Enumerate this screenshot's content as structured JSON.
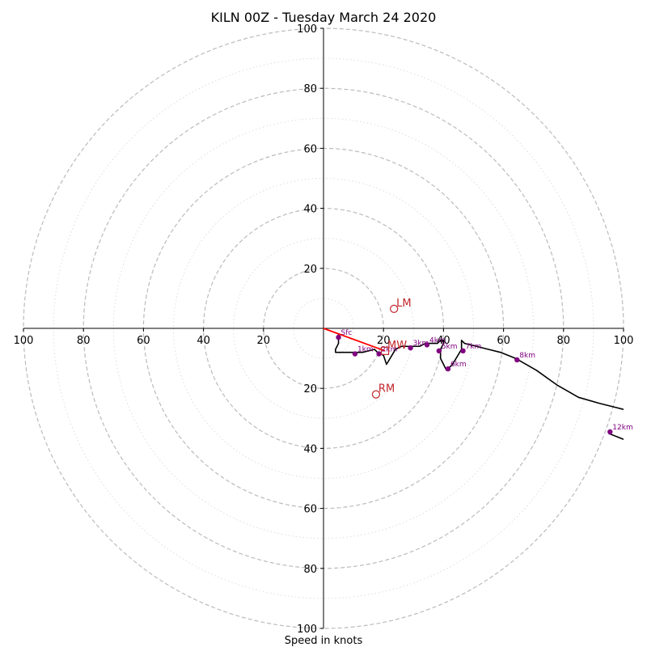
{
  "chart_data": {
    "type": "hodograph",
    "title": "KILN 00Z - Tuesday March 24 2020",
    "xlabel": "Speed in knots",
    "ylabel": "",
    "range": [
      -100,
      100
    ],
    "tick_labels": [
      "100",
      "80",
      "60",
      "40",
      "20",
      "20",
      "40",
      "60",
      "80",
      "100"
    ],
    "tick_values_x": [
      -100,
      -80,
      -60,
      -40,
      -20,
      20,
      40,
      60,
      80,
      100
    ],
    "tick_labels_y": [
      "100",
      "80",
      "60",
      "40",
      "20",
      "20",
      "40",
      "60",
      "80",
      "100"
    ],
    "tick_values_y": [
      100,
      80,
      60,
      40,
      20,
      -20,
      -40,
      -60,
      -80,
      -100
    ],
    "rings_major": [
      20,
      40,
      60,
      80,
      100
    ],
    "rings_minor": [
      10,
      30,
      50,
      70,
      90
    ],
    "grid": true,
    "hodograph_line": [
      [
        5,
        -2
      ],
      [
        5,
        -5
      ],
      [
        4,
        -7
      ],
      [
        4,
        -8
      ],
      [
        10,
        -8
      ],
      [
        13,
        -8
      ],
      [
        17,
        -7
      ],
      [
        18,
        -8
      ],
      [
        20,
        -9
      ],
      [
        21,
        -12
      ],
      [
        24,
        -7
      ],
      [
        26,
        -6
      ],
      [
        29,
        -6
      ],
      [
        32,
        -6
      ],
      [
        34,
        -5
      ],
      [
        36,
        -5
      ],
      [
        38,
        -5
      ],
      [
        39,
        -4
      ],
      [
        40,
        -4
      ],
      [
        40,
        -5
      ],
      [
        39,
        -7
      ],
      [
        39,
        -9
      ],
      [
        39,
        -10
      ],
      [
        40,
        -12
      ],
      [
        41,
        -14
      ],
      [
        43,
        -12
      ],
      [
        46,
        -7
      ],
      [
        46,
        -4
      ],
      [
        47,
        -5
      ],
      [
        51,
        -6
      ],
      [
        55,
        -7
      ],
      [
        59,
        -8
      ],
      [
        64,
        -10
      ],
      [
        71,
        -14
      ],
      [
        78,
        -19
      ],
      [
        85,
        -23
      ],
      [
        92,
        -25
      ],
      [
        100,
        -27
      ]
    ],
    "hodograph_tail": [
      [
        95,
        -35
      ],
      [
        100,
        -37
      ]
    ],
    "height_points": [
      {
        "label": "Sfc",
        "u": 5,
        "v": -3
      },
      {
        "label": "1km",
        "u": 10.5,
        "v": -8.5
      },
      {
        "label": "2km",
        "u": 18.5,
        "v": -8.5
      },
      {
        "label": "3km",
        "u": 29,
        "v": -6.5
      },
      {
        "label": "4km",
        "u": 34.5,
        "v": -5.5
      },
      {
        "label": "5km",
        "u": 38.5,
        "v": -7.5
      },
      {
        "label": "6km",
        "u": 41.5,
        "v": -13.5
      },
      {
        "label": "7km",
        "u": 46.5,
        "v": -7.5
      },
      {
        "label": "8km",
        "u": 64.5,
        "v": -10.5
      },
      {
        "label": "12km",
        "u": 95.5,
        "v": -34.5
      }
    ],
    "storm_motions": [
      {
        "label": "LM",
        "u": 23.5,
        "v": 6.5,
        "marker": "circle"
      },
      {
        "label": "RM",
        "u": 17.5,
        "v": -22,
        "marker": "circle"
      },
      {
        "label": "MW",
        "u": 20.5,
        "v": -7.5,
        "marker": "square"
      }
    ],
    "shear_vector": {
      "from": [
        0,
        0
      ],
      "to": [
        20.5,
        -7.5
      ]
    },
    "colors": {
      "ring_major": "#bbbbbb",
      "ring_minor": "#dddddd",
      "axis": "#000000",
      "hodograph": "#000000",
      "height_points": "#800080",
      "storm_motion": "#c0262b",
      "shear_vector": "#ff0000"
    }
  }
}
